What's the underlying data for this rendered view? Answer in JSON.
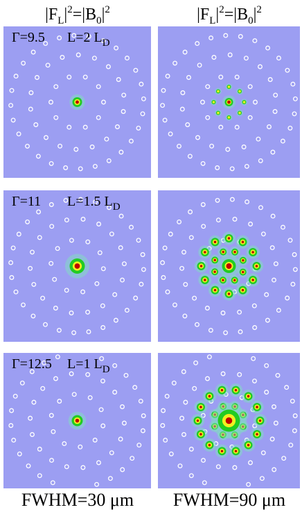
{
  "columns": [
    {
      "header": [
        "|F",
        "L",
        "|",
        "2",
        "=|B",
        "0",
        "|",
        "2"
      ],
      "footer": "FWHM=30 μm"
    },
    {
      "header": [
        "|F",
        "L",
        "|",
        "2",
        "=|B",
        "0",
        "|",
        "2"
      ],
      "footer": "FWHM=90 μm"
    }
  ],
  "rows": [
    {
      "gamma": "Γ=9.5",
      "length": "L=2 L",
      "length_sub": "D"
    },
    {
      "gamma": "Γ=11",
      "length": "L=1.5 L",
      "length_sub": "D"
    },
    {
      "gamma": "Γ=12.5",
      "length": "L=1 L",
      "length_sub": "D"
    }
  ]
}
